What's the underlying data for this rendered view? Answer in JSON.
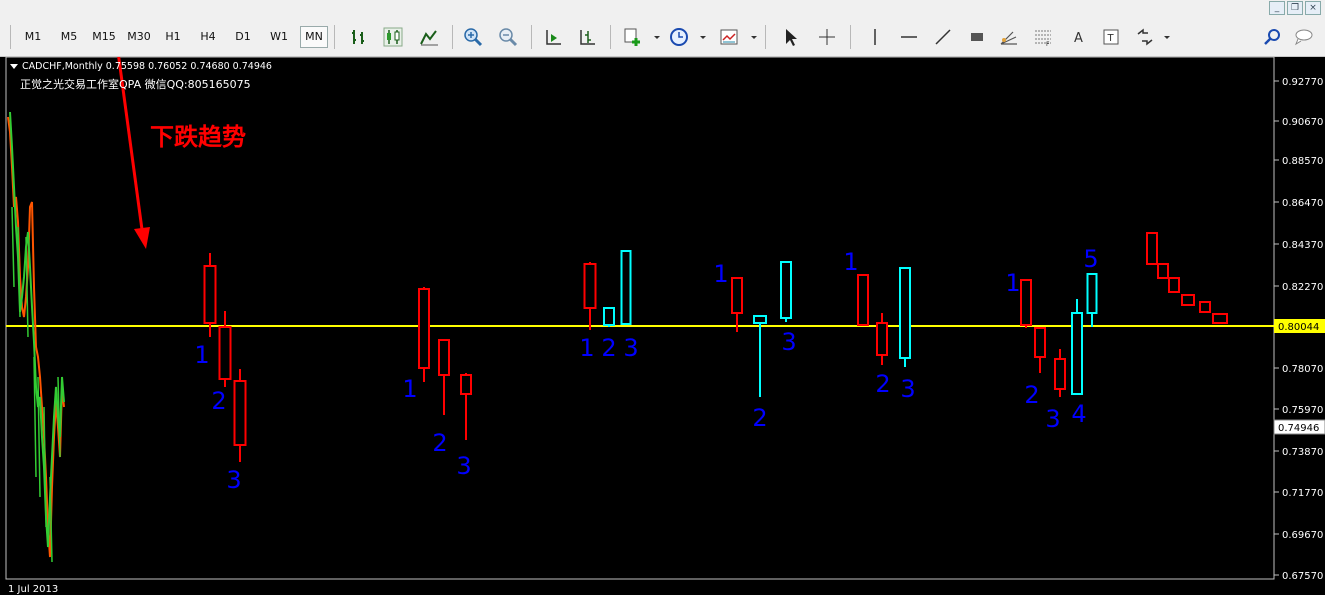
{
  "toolbar": {
    "timeframes": [
      "M1",
      "M5",
      "M15",
      "M30",
      "H1",
      "H4",
      "D1",
      "W1",
      "MN"
    ],
    "active_timeframe": "MN"
  },
  "chart": {
    "symbol_line": "CADCHF,Monthly  0.75598 0.76052 0.74680 0.74946",
    "subtitle": "正觉之光交易工作室QPA 微信QQ:805165075",
    "annotation": "下跌趋势",
    "date_label": "1 Jul 2013",
    "price_ticks": [
      "0.92770",
      "0.90670",
      "0.88570",
      "0.86470",
      "0.84370",
      "0.82270",
      "0.78070",
      "0.75970",
      "0.73870",
      "0.71770",
      "0.69670",
      "0.67570"
    ],
    "hline_label": "0.80044",
    "last_price_label": "0.74946",
    "colors": {
      "bear": "#ff0000",
      "bull": "#00ffff",
      "hline": "#ffff00",
      "wave_labels": "#0000ff",
      "annotation": "#ff0000"
    },
    "wave_labels": [
      "1",
      "2",
      "3",
      "1",
      "2",
      "3",
      "1",
      "2",
      "3",
      "1",
      "2",
      "3",
      "1",
      "2",
      "3",
      "1",
      "2",
      "3",
      "4",
      "5"
    ]
  }
}
